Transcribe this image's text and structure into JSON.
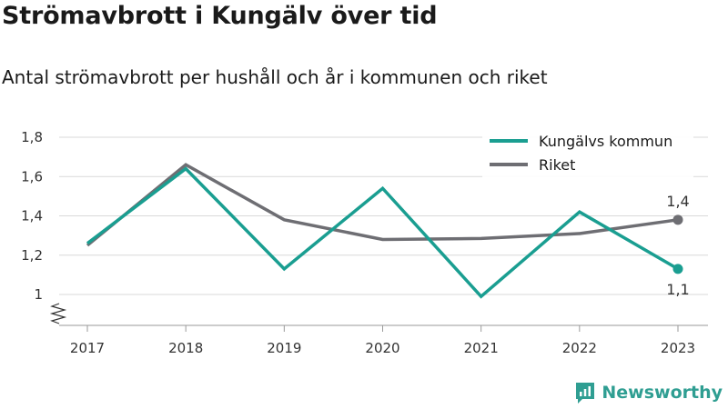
{
  "header": {
    "title": "Strömavbrott i Kungälv över tid",
    "subtitle": "Antal strömavbrott per hushåll och år i kommunen och riket"
  },
  "brand": {
    "name": "Newsworthy",
    "icon": "newsworthy-logo-icon",
    "color": "#2f9e92"
  },
  "chart_data": {
    "type": "line",
    "title": "Strömavbrott i Kungälv över tid",
    "subtitle": "Antal strömavbrott per hushåll och år i kommunen och riket",
    "x": [
      "2017",
      "2018",
      "2019",
      "2020",
      "2021",
      "2022",
      "2023"
    ],
    "series": [
      {
        "name": "Kungälvs kommun",
        "color": "#1a9e91",
        "values": [
          1.26,
          1.64,
          1.13,
          1.54,
          0.99,
          1.42,
          1.13
        ],
        "end_label": "1,1"
      },
      {
        "name": "Riket",
        "color": "#6e6e73",
        "values": [
          1.25,
          1.66,
          1.38,
          1.28,
          1.285,
          1.31,
          1.38
        ],
        "end_label": "1,4"
      }
    ],
    "y_ticks": [
      "1",
      "1,2",
      "1,4",
      "1,6",
      "1,8"
    ],
    "y_tick_values": [
      1.0,
      1.2,
      1.4,
      1.6,
      1.8
    ],
    "ylim": [
      0.9,
      1.8
    ],
    "y_axis_break": true,
    "grid": true,
    "legend_position": "top-right",
    "xlabel": "",
    "ylabel": ""
  }
}
